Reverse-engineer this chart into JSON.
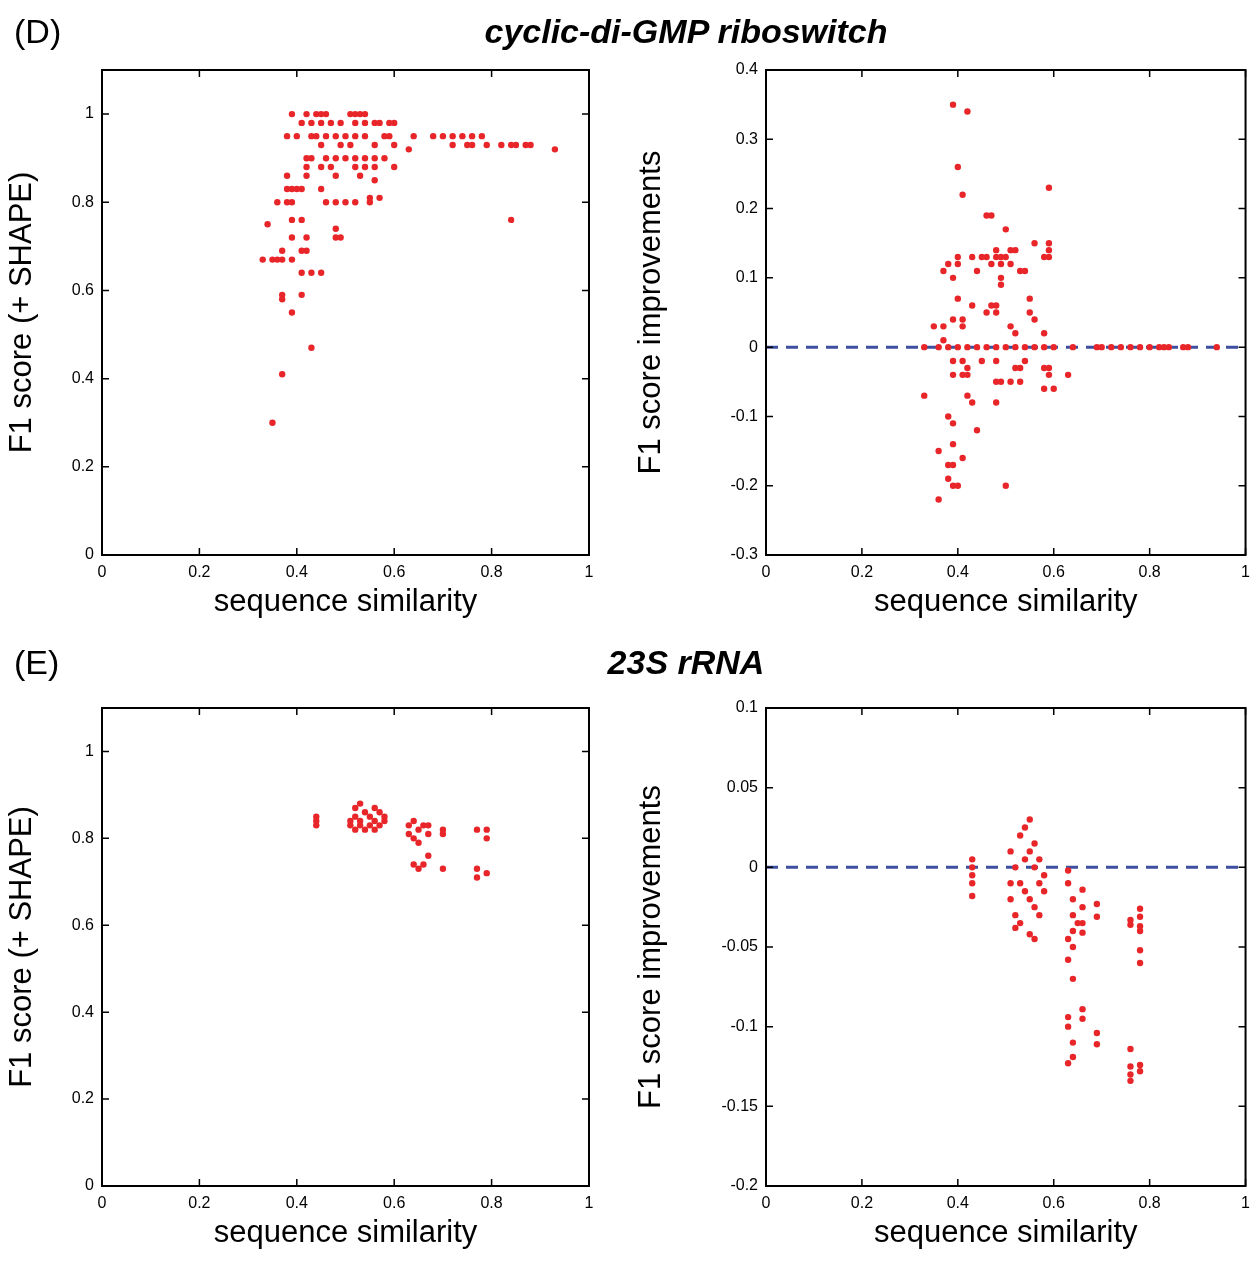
{
  "chart_data": [
    {
      "type": "scatter",
      "title": "cyclic-di-GMP riboswitch",
      "annotations": [
        "(D)"
      ],
      "xlabel": "sequence similarity",
      "ylabel": "F1 score (+ SHAPE)",
      "color": "#e8262a",
      "marker": "circle",
      "xlim": [
        0,
        1
      ],
      "ylim": [
        0,
        1.1
      ],
      "xticks": [
        0,
        0.2,
        0.4,
        0.6,
        0.8,
        1
      ],
      "yticks": [
        0,
        0.2,
        0.4,
        0.6,
        0.8,
        1
      ],
      "x": [
        0.39,
        0.42,
        0.44,
        0.45,
        0.46,
        0.51,
        0.52,
        0.53,
        0.54,
        0.41,
        0.43,
        0.45,
        0.47,
        0.49,
        0.52,
        0.54,
        0.56,
        0.57,
        0.59,
        0.6,
        0.38,
        0.4,
        0.43,
        0.44,
        0.46,
        0.48,
        0.5,
        0.52,
        0.54,
        0.58,
        0.59,
        0.64,
        0.68,
        0.7,
        0.72,
        0.74,
        0.76,
        0.78,
        0.45,
        0.49,
        0.51,
        0.56,
        0.6,
        0.72,
        0.75,
        0.76,
        0.79,
        0.82,
        0.84,
        0.85,
        0.87,
        0.88,
        0.93,
        0.63,
        0.42,
        0.43,
        0.46,
        0.48,
        0.5,
        0.52,
        0.54,
        0.56,
        0.58,
        0.42,
        0.45,
        0.47,
        0.52,
        0.54,
        0.56,
        0.6,
        0.38,
        0.42,
        0.48,
        0.53,
        0.56,
        0.38,
        0.39,
        0.4,
        0.41,
        0.45,
        0.55,
        0.57,
        0.36,
        0.38,
        0.39,
        0.46,
        0.48,
        0.5,
        0.52,
        0.55,
        0.39,
        0.41,
        0.84,
        0.34,
        0.48,
        0.39,
        0.42,
        0.48,
        0.49,
        0.37,
        0.41,
        0.42,
        0.33,
        0.35,
        0.36,
        0.37,
        0.39,
        0.43,
        0.45,
        0.41,
        0.37,
        0.41,
        0.37,
        0.39,
        0.43,
        0.37,
        0.35
      ],
      "values": [
        1,
        1,
        1,
        1,
        1,
        1,
        1,
        1,
        1,
        0.98,
        0.98,
        0.98,
        0.98,
        0.98,
        0.98,
        0.98,
        0.98,
        0.98,
        0.98,
        0.98,
        0.95,
        0.95,
        0.95,
        0.95,
        0.95,
        0.95,
        0.95,
        0.95,
        0.95,
        0.95,
        0.95,
        0.95,
        0.95,
        0.95,
        0.95,
        0.95,
        0.95,
        0.95,
        0.93,
        0.93,
        0.93,
        0.93,
        0.93,
        0.93,
        0.93,
        0.93,
        0.93,
        0.93,
        0.93,
        0.93,
        0.93,
        0.93,
        0.92,
        0.92,
        0.9,
        0.9,
        0.9,
        0.9,
        0.9,
        0.9,
        0.9,
        0.9,
        0.9,
        0.88,
        0.88,
        0.88,
        0.88,
        0.88,
        0.88,
        0.88,
        0.86,
        0.86,
        0.86,
        0.86,
        0.85,
        0.83,
        0.83,
        0.83,
        0.83,
        0.83,
        0.81,
        0.81,
        0.8,
        0.8,
        0.8,
        0.8,
        0.8,
        0.8,
        0.8,
        0.8,
        0.76,
        0.76,
        0.76,
        0.75,
        0.74,
        0.72,
        0.72,
        0.72,
        0.72,
        0.69,
        0.69,
        0.69,
        0.67,
        0.67,
        0.67,
        0.67,
        0.67,
        0.64,
        0.64,
        0.64,
        0.59,
        0.59,
        0.58,
        0.55,
        0.47,
        0.41,
        0.3
      ]
    },
    {
      "type": "scatter",
      "xlabel": "sequence similarity",
      "ylabel": "F1 score improvements",
      "color": "#e8262a",
      "marker": "circle",
      "xlim": [
        0,
        1
      ],
      "ylim": [
        -0.3,
        0.4
      ],
      "xticks": [
        0,
        0.2,
        0.4,
        0.6,
        0.8,
        1
      ],
      "yticks": [
        -0.3,
        -0.2,
        -0.1,
        0,
        0.1,
        0.2,
        0.3,
        0.4
      ],
      "ref_lines": [
        {
          "axis": "y",
          "value": 0,
          "color": "#3c50a0",
          "line_style": "dashed"
        }
      ],
      "x": [
        0.33,
        0.36,
        0.38,
        0.4,
        0.42,
        0.44,
        0.46,
        0.48,
        0.5,
        0.52,
        0.54,
        0.56,
        0.58,
        0.6,
        0.64,
        0.69,
        0.7,
        0.72,
        0.74,
        0.76,
        0.78,
        0.8,
        0.82,
        0.83,
        0.84,
        0.87,
        0.88,
        0.94,
        0.39,
        0.42,
        0.4,
        0.41,
        0.59,
        0.46,
        0.47,
        0.5,
        0.56,
        0.59,
        0.59,
        0.4,
        0.43,
        0.45,
        0.46,
        0.48,
        0.48,
        0.49,
        0.5,
        0.51,
        0.52,
        0.58,
        0.59,
        0.38,
        0.37,
        0.4,
        0.44,
        0.47,
        0.49,
        0.51,
        0.53,
        0.54,
        0.39,
        0.49,
        0.49,
        0.4,
        0.43,
        0.48,
        0.55,
        0.55,
        0.46,
        0.47,
        0.48,
        0.56,
        0.35,
        0.37,
        0.41,
        0.39,
        0.41,
        0.51,
        0.52,
        0.58,
        0.37,
        0.39,
        0.41,
        0.45,
        0.48,
        0.54,
        0.52,
        0.53,
        0.58,
        0.59,
        0.42,
        0.59,
        0.63,
        0.39,
        0.41,
        0.42,
        0.48,
        0.49,
        0.51,
        0.53,
        0.58,
        0.6,
        0.33,
        0.42,
        0.43,
        0.48,
        0.38,
        0.39,
        0.44,
        0.39,
        0.36,
        0.38,
        0.39,
        0.41,
        0.38,
        0.39,
        0.4,
        0.5,
        0.36
      ],
      "values": [
        0,
        0,
        0,
        0,
        0,
        0,
        0,
        0,
        0,
        0,
        0,
        0,
        0,
        0,
        0,
        0,
        0,
        0,
        0,
        0,
        0,
        0,
        0,
        0,
        0,
        0,
        0,
        0,
        0.35,
        0.34,
        0.26,
        0.22,
        0.23,
        0.19,
        0.19,
        0.17,
        0.15,
        0.15,
        0.14,
        0.13,
        0.13,
        0.13,
        0.13,
        0.14,
        0.13,
        0.13,
        0.13,
        0.14,
        0.14,
        0.13,
        0.13,
        0.12,
        0.11,
        0.12,
        0.11,
        0.12,
        0.12,
        0.12,
        0.11,
        0.11,
        0.1,
        0.1,
        0.09,
        0.07,
        0.06,
        0.06,
        0.07,
        0.05,
        0.05,
        0.06,
        0.05,
        0.04,
        0.03,
        0.03,
        0.04,
        0.04,
        0.03,
        0.03,
        0.02,
        0.02,
        0.01,
        -0.02,
        -0.02,
        -0.02,
        -0.02,
        -0.02,
        -0.03,
        -0.03,
        -0.03,
        -0.03,
        -0.03,
        -0.04,
        -0.04,
        -0.04,
        -0.04,
        -0.04,
        -0.05,
        -0.05,
        -0.05,
        -0.05,
        -0.06,
        -0.06,
        -0.07,
        -0.07,
        -0.08,
        -0.08,
        -0.1,
        -0.11,
        -0.12,
        -0.14,
        -0.15,
        -0.17,
        -0.17,
        -0.16,
        -0.19,
        -0.2,
        -0.2,
        -0.2,
        -0.22
      ]
    },
    {
      "type": "scatter",
      "title": "23S rRNA",
      "annotations": [
        "(E)"
      ],
      "xlabel": "sequence similarity",
      "ylabel": "F1 score (+ SHAPE)",
      "color": "#e8262a",
      "marker": "circle",
      "xlim": [
        0,
        1
      ],
      "ylim": [
        0,
        1.1
      ],
      "xticks": [
        0,
        0.2,
        0.4,
        0.6,
        0.8,
        1
      ],
      "yticks": [
        0,
        0.2,
        0.4,
        0.6,
        0.8,
        1
      ],
      "x": [
        0.44,
        0.44,
        0.44,
        0.51,
        0.51,
        0.52,
        0.52,
        0.52,
        0.53,
        0.53,
        0.54,
        0.54,
        0.55,
        0.55,
        0.56,
        0.56,
        0.57,
        0.57,
        0.58,
        0.58,
        0.53,
        0.56,
        0.63,
        0.63,
        0.64,
        0.64,
        0.65,
        0.65,
        0.66,
        0.67,
        0.67,
        0.64,
        0.65,
        0.66,
        0.67,
        0.7,
        0.7,
        0.7,
        0.77,
        0.77,
        0.77,
        0.79,
        0.79,
        0.79
      ],
      "values": [
        0.83,
        0.84,
        0.85,
        0.83,
        0.84,
        0.82,
        0.85,
        0.87,
        0.83,
        0.84,
        0.82,
        0.86,
        0.83,
        0.85,
        0.82,
        0.84,
        0.83,
        0.86,
        0.84,
        0.85,
        0.88,
        0.87,
        0.81,
        0.83,
        0.8,
        0.84,
        0.82,
        0.79,
        0.83,
        0.81,
        0.83,
        0.74,
        0.73,
        0.74,
        0.76,
        0.82,
        0.81,
        0.73,
        0.82,
        0.73,
        0.71,
        0.82,
        0.8,
        0.72
      ]
    },
    {
      "type": "scatter",
      "xlabel": "sequence similarity",
      "ylabel": "F1 score improvements",
      "color": "#e8262a",
      "marker": "circle",
      "xlim": [
        0,
        1
      ],
      "ylim": [
        -0.2,
        0.1
      ],
      "xticks": [
        0,
        0.2,
        0.4,
        0.6,
        0.8,
        1
      ],
      "yticks": [
        -0.2,
        -0.15,
        -0.1,
        -0.05,
        0,
        0.05,
        0.1
      ],
      "ref_lines": [
        {
          "axis": "y",
          "value": 0,
          "color": "#3c50a0",
          "line_style": "dashed"
        }
      ],
      "x": [
        0.43,
        0.43,
        0.43,
        0.43,
        0.43,
        0.51,
        0.51,
        0.51,
        0.52,
        0.52,
        0.53,
        0.53,
        0.53,
        0.54,
        0.54,
        0.54,
        0.55,
        0.55,
        0.55,
        0.56,
        0.56,
        0.56,
        0.57,
        0.57,
        0.57,
        0.58,
        0.58,
        0.52,
        0.55,
        0.56,
        0.63,
        0.63,
        0.64,
        0.64,
        0.65,
        0.63,
        0.64,
        0.63,
        0.64,
        0.63,
        0.63,
        0.64,
        0.64,
        0.63,
        0.64,
        0.66,
        0.66,
        0.66,
        0.66,
        0.66,
        0.66,
        0.69,
        0.69,
        0.69,
        0.69,
        0.76,
        0.76,
        0.76,
        0.76,
        0.76,
        0.76,
        0.78,
        0.78,
        0.78,
        0.78,
        0.78,
        0.78,
        0.78,
        0.78
      ],
      "values": [
        0.005,
        0,
        -0.005,
        -0.01,
        -0.018,
        0.01,
        -0.01,
        -0.02,
        -0.03,
        0,
        -0.01,
        0.02,
        -0.035,
        0.025,
        -0.015,
        0.005,
        0.03,
        -0.02,
        0.01,
        -0.025,
        0,
        0.015,
        -0.01,
        -0.03,
        0.005,
        -0.015,
        -0.005,
        -0.038,
        -0.042,
        -0.045,
        -0.002,
        -0.01,
        -0.02,
        -0.03,
        -0.035,
        -0.045,
        -0.05,
        -0.058,
        -0.07,
        -0.094,
        -0.1,
        -0.11,
        -0.119,
        -0.123,
        -0.04,
        -0.014,
        -0.025,
        -0.035,
        -0.041,
        -0.089,
        -0.095,
        -0.023,
        -0.031,
        -0.104,
        -0.111,
        -0.033,
        -0.036,
        -0.114,
        -0.125,
        -0.13,
        -0.134,
        -0.026,
        -0.031,
        -0.037,
        -0.04,
        -0.052,
        -0.06,
        -0.128,
        -0.124
      ]
    }
  ]
}
